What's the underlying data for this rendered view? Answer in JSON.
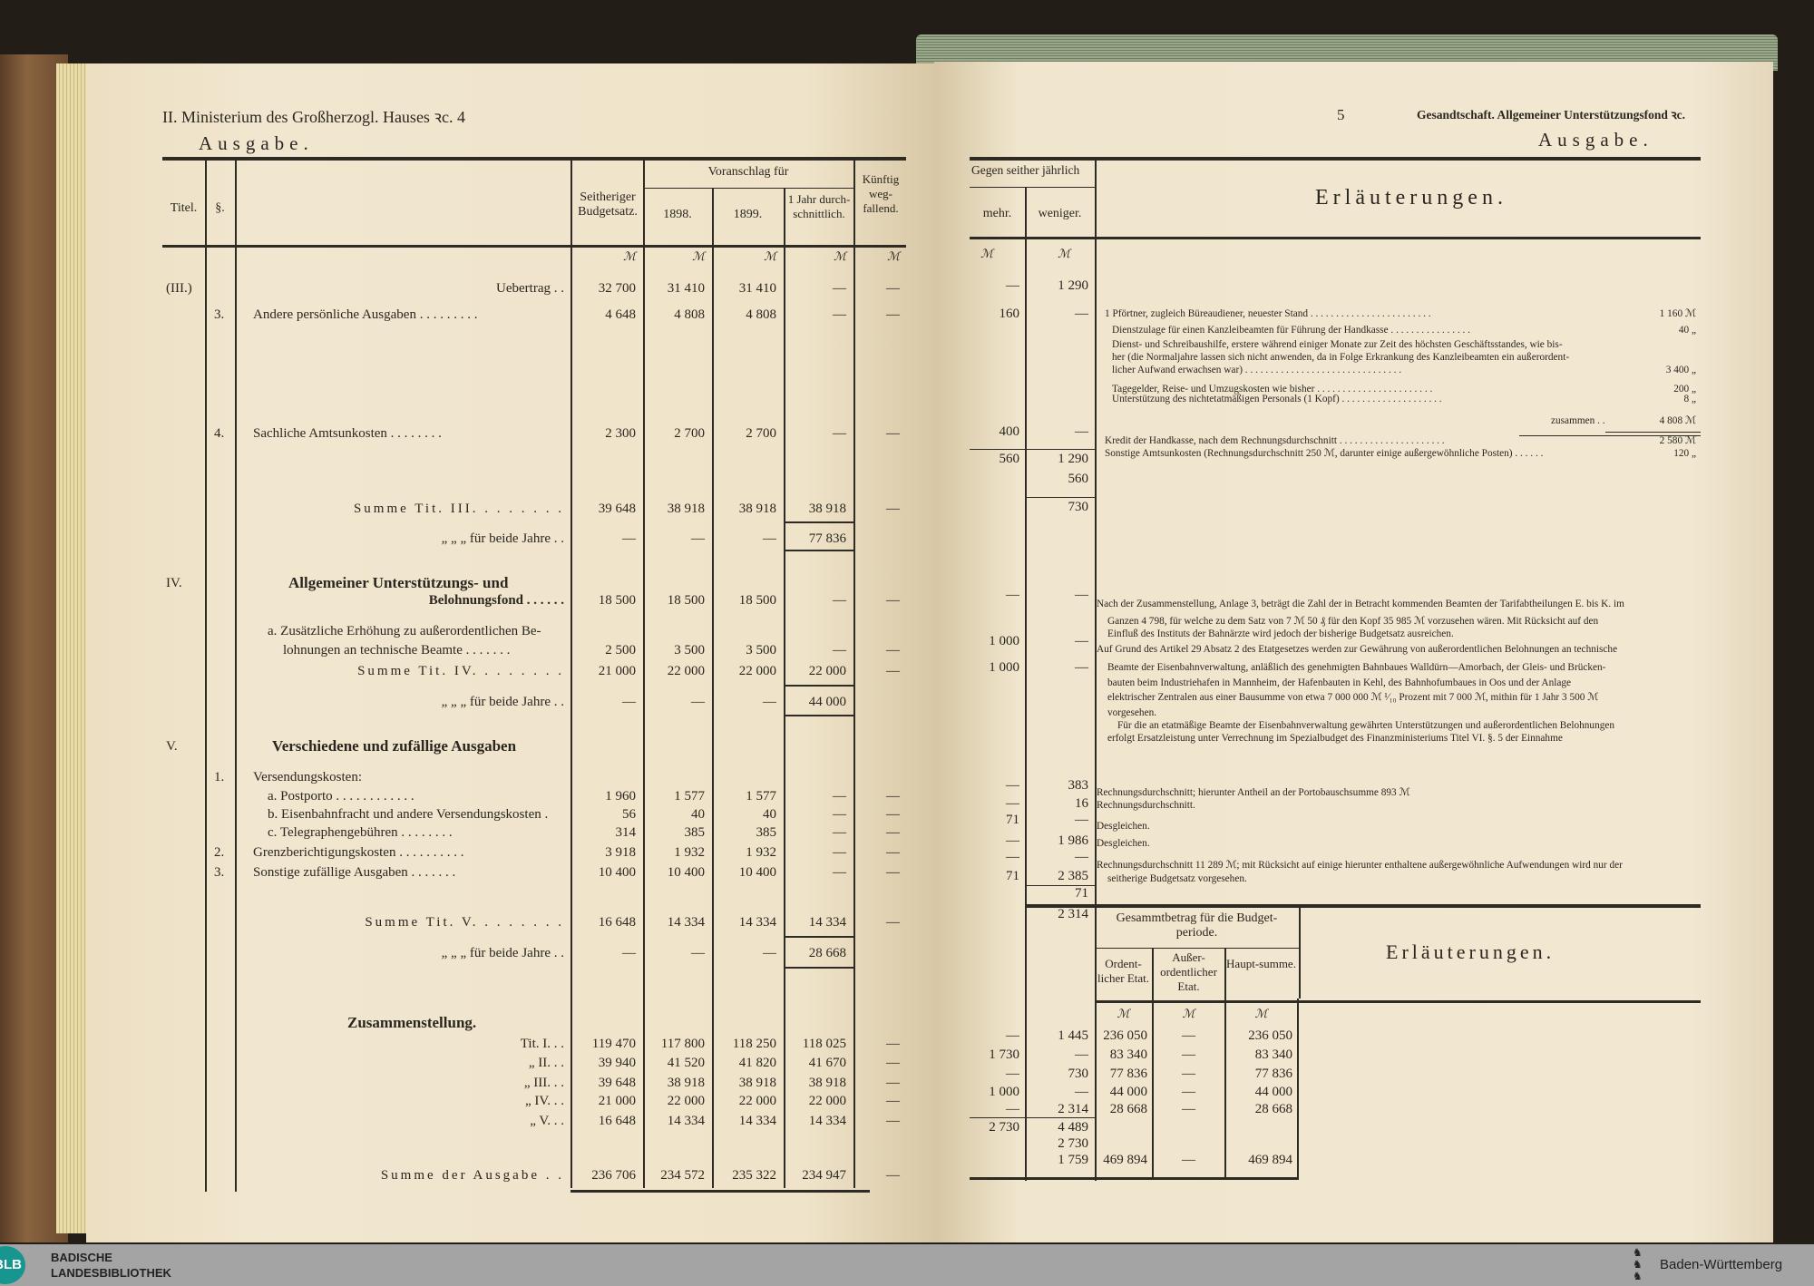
{
  "left": {
    "heading": "II. Ministerium des Großherzogl. Hauses ꝛc. 4",
    "subheading": "Ausgabe.",
    "columns": {
      "titel": "Titel.",
      "para": "§.",
      "seitheriger": "Seitheriger Budgetsatz.",
      "voranschlag": "Voranschlag für",
      "y1898": "1898.",
      "y1899": "1899.",
      "jahr": "1 Jahr durch-schnittlich.",
      "kuenftig": "Künftig weg-fallend."
    },
    "currency": "ℳ",
    "rows": [
      {
        "titel": "(III.)",
        "para": "",
        "label": "Uebertrag . .",
        "vals": [
          "32 700",
          "31 410",
          "31 410",
          "—",
          "—"
        ]
      },
      {
        "titel": "",
        "para": "3.",
        "label": "Andere persönliche Ausgaben . . . . . . . . .",
        "vals": [
          "4 648",
          "4 808",
          "4 808",
          "—",
          "—"
        ]
      },
      {
        "titel": "",
        "para": "4.",
        "label": "Sachliche Amtsunkosten . . . . . . . .",
        "vals": [
          "2 300",
          "2 700",
          "2 700",
          "—",
          "—"
        ]
      },
      {
        "titel": "",
        "para": "",
        "label": "Summe Tit. III. . . . . . . .",
        "vals": [
          "39 648",
          "38 918",
          "38 918",
          "38 918",
          "—"
        ]
      },
      {
        "titel": "",
        "para": "",
        "label": "„ „ „ für beide Jahre . .",
        "vals": [
          "—",
          "—",
          "—",
          "77 836",
          ""
        ]
      },
      {
        "titel": "IV.",
        "para": "",
        "label": "Allgemeiner Unterstützungs- und",
        "vals": [
          "",
          "",
          "",
          "",
          ""
        ]
      },
      {
        "titel": "",
        "para": "",
        "label": "Belohnungsfond . . . . . .",
        "vals": [
          "18 500",
          "18 500",
          "18 500",
          "—",
          "—"
        ]
      },
      {
        "titel": "",
        "para": "",
        "label": "a. Zusätzliche Erhöhung zu außerordentlichen Be-",
        "vals": [
          "",
          "",
          "",
          "",
          ""
        ]
      },
      {
        "titel": "",
        "para": "",
        "label": "lohnungen an technische Beamte . . . . . . .",
        "vals": [
          "2 500",
          "3 500",
          "3 500",
          "—",
          "—"
        ]
      },
      {
        "titel": "",
        "para": "",
        "label": "Summe Tit. IV. . . . . . . .",
        "vals": [
          "21 000",
          "22 000",
          "22 000",
          "22 000",
          "—"
        ]
      },
      {
        "titel": "",
        "para": "",
        "label": "„ „ „ für beide Jahre . .",
        "vals": [
          "—",
          "—",
          "—",
          "44 000",
          ""
        ]
      },
      {
        "titel": "V.",
        "para": "",
        "label": "Verschiedene und zufällige Ausgaben",
        "vals": [
          "",
          "",
          "",
          "",
          ""
        ]
      },
      {
        "titel": "",
        "para": "1.",
        "label": "Versendungskosten:",
        "vals": [
          "",
          "",
          "",
          "",
          ""
        ]
      },
      {
        "titel": "",
        "para": "",
        "label": "a. Postporto . . . . . . . . . . . .",
        "vals": [
          "1 960",
          "1 577",
          "1 577",
          "—",
          "—"
        ]
      },
      {
        "titel": "",
        "para": "",
        "label": "b. Eisenbahnfracht und andere Versendungskosten .",
        "vals": [
          "56",
          "40",
          "40",
          "—",
          "—"
        ]
      },
      {
        "titel": "",
        "para": "",
        "label": "c. Telegraphengebühren . . . . . . . .",
        "vals": [
          "314",
          "385",
          "385",
          "—",
          "—"
        ]
      },
      {
        "titel": "",
        "para": "2.",
        "label": "Grenzberichtigungskosten . . . . . . . . . .",
        "vals": [
          "3 918",
          "1 932",
          "1 932",
          "—",
          "—"
        ]
      },
      {
        "titel": "",
        "para": "3.",
        "label": "Sonstige zufällige Ausgaben . . . . . . .",
        "vals": [
          "10 400",
          "10 400",
          "10 400",
          "—",
          "—"
        ]
      },
      {
        "titel": "",
        "para": "",
        "label": "Summe Tit. V. . . . . . . .",
        "vals": [
          "16 648",
          "14 334",
          "14 334",
          "14 334",
          "—"
        ]
      },
      {
        "titel": "",
        "para": "",
        "label": "„ „ „ für beide Jahre . .",
        "vals": [
          "—",
          "—",
          "—",
          "28 668",
          ""
        ]
      },
      {
        "titel": "",
        "para": "",
        "label": "Zusammenstellung.",
        "vals": [
          "",
          "",
          "",
          "",
          ""
        ]
      },
      {
        "titel": "",
        "para": "",
        "label": "Tit. I. . .",
        "vals": [
          "119 470",
          "117 800",
          "118 250",
          "118 025",
          "—"
        ]
      },
      {
        "titel": "",
        "para": "",
        "label": "„ II. . .",
        "vals": [
          "39 940",
          "41 520",
          "41 820",
          "41 670",
          "—"
        ]
      },
      {
        "titel": "",
        "para": "",
        "label": "„ III. . .",
        "vals": [
          "39 648",
          "38 918",
          "38 918",
          "38 918",
          "—"
        ]
      },
      {
        "titel": "",
        "para": "",
        "label": "„ IV. . .",
        "vals": [
          "21 000",
          "22 000",
          "22 000",
          "22 000",
          "—"
        ]
      },
      {
        "titel": "",
        "para": "",
        "label": "„ V. . .",
        "vals": [
          "16 648",
          "14 334",
          "14 334",
          "14 334",
          "—"
        ]
      },
      {
        "titel": "",
        "para": "",
        "label": "Summe der Ausgabe . .",
        "vals": [
          "236 706",
          "234 572",
          "235 322",
          "234 947",
          "—"
        ]
      }
    ]
  },
  "right": {
    "page_number": "5",
    "heading": "Gesandtschaft. Allgemeiner Unterstützungsfond ꝛc.",
    "subheading": "Ausgabe.",
    "columns": {
      "gegen": "Gegen seither jährlich",
      "mehr": "mehr.",
      "weniger": "weniger.",
      "erlaeuterungen": "Erläuterungen."
    },
    "currency": "ℳ",
    "rows": [
      {
        "mehr": "—",
        "weniger": "1 290"
      },
      {
        "mehr": "160",
        "weniger": "—"
      },
      {
        "mehr": "400",
        "weniger": "—"
      },
      {
        "mehr": "560",
        "weniger": "1 290"
      },
      {
        "mehr": "",
        "weniger": "560"
      },
      {
        "mehr": "",
        "weniger": "730"
      },
      {
        "mehr": "—",
        "weniger": "—"
      },
      {
        "mehr": "1 000",
        "weniger": "—"
      },
      {
        "mehr": "1 000",
        "weniger": "—"
      },
      {
        "mehr": "—",
        "weniger": "383"
      },
      {
        "mehr": "—",
        "weniger": "16"
      },
      {
        "mehr": "71",
        "weniger": "—"
      },
      {
        "mehr": "—",
        "weniger": "1 986"
      },
      {
        "mehr": "—",
        "weniger": "—"
      },
      {
        "mehr": "71",
        "weniger": "2 385"
      },
      {
        "mehr": "",
        "weniger": "71"
      },
      {
        "mehr": "",
        "weniger": "2 314"
      },
      {
        "mehr": "—",
        "weniger": "1 445"
      },
      {
        "mehr": "1 730",
        "weniger": "—"
      },
      {
        "mehr": "—",
        "weniger": "730"
      },
      {
        "mehr": "1 000",
        "weniger": "—"
      },
      {
        "mehr": "—",
        "weniger": "2 314"
      },
      {
        "mehr": "2 730",
        "weniger": "4 489"
      },
      {
        "mehr": "",
        "weniger": "2 730"
      },
      {
        "mehr": "",
        "weniger": "1 759"
      }
    ],
    "notes": [
      {
        "text": "1 Pförtner, zugleich Büreaudiener, neuester Stand . . . . . . . . . . . . . . . . . . . . . . . .",
        "amount": "1 160 ℳ"
      },
      {
        "text": "Dienstzulage für einen Kanzleibeamten für Führung der Handkasse . . . . . . . . . . . . . . . .",
        "amount": "40 „"
      },
      {
        "text": "Dienst- und Schreibaushilfe, erstere während einiger Monate zur Zeit des höchsten Geschäftsstandes, wie bis-",
        "amount": ""
      },
      {
        "text": "her (die Normaljahre lassen sich nicht anwenden, da in Folge Erkrankung des Kanzleibeamten ein außerordent-",
        "amount": ""
      },
      {
        "text": "licher Aufwand erwachsen war) . . . . . . . . . . . . . . . . . . . . . . . . . . . . . . .",
        "amount": "3 400 „"
      },
      {
        "text": "Tagegelder, Reise- und Umzugskosten wie bisher . . . . . . . . . . . . . . . . . . . . . . .",
        "amount": "200 „"
      },
      {
        "text": "Unterstützung des nichtetatmäßigen Personals (1 Kopf) . . . . . . . . . . . . . . . . . . . .",
        "amount": "8 „"
      },
      {
        "text": "zusammen . .",
        "amount": "4 808 ℳ"
      },
      {
        "text": "Kredit der Handkasse, nach dem Rechnungsdurchschnitt . . . . . . . . . . . . . . . . . . . . .",
        "amount": "2 580 ℳ"
      },
      {
        "text": "Sonstige Amtsunkosten (Rechnungsdurchschnitt 250 ℳ, darunter einige außergewöhnliche Posten) . . . . . .",
        "amount": "120 „"
      },
      {
        "text": "Nach der Zusammenstellung, Anlage 3, beträgt die Zahl der in Betracht kommenden Beamten der Tarifabtheilungen E. bis K. im",
        "amount": ""
      },
      {
        "text": "Ganzen 4 798, für welche zu dem Satz von 7 ℳ 50 ₰ für den Kopf 35 985 ℳ vorzusehen wären. Mit Rücksicht auf den",
        "amount": ""
      },
      {
        "text": "Einfluß des Instituts der Bahnärzte wird jedoch der bisherige Budgetsatz ausreichen.",
        "amount": ""
      },
      {
        "text": "Auf Grund des Artikel 29 Absatz 2 des Etatgesetzes werden zur Gewährung von außerordentlichen Belohnungen an technische",
        "amount": ""
      },
      {
        "text": "Beamte der Eisenbahnverwaltung, anläßlich des genehmigten Bahnbaues Walldürn—Amorbach, der Gleis- und Brücken-",
        "amount": ""
      },
      {
        "text": "bauten beim Industriehafen in Mannheim, der Hafenbauten in Kehl, des Bahnhofumbaues in Oos und der Anlage",
        "amount": ""
      },
      {
        "text": "elektrischer Zentralen aus einer Bausumme von etwa 7 000 000 ℳ ¹⁄₁₀ Prozent mit 7 000 ℳ, mithin für 1 Jahr 3 500 ℳ",
        "amount": ""
      },
      {
        "text": "vorgesehen.",
        "amount": ""
      },
      {
        "text": "Für die an etatmäßige Beamte der Eisenbahnverwaltung gewährten Unterstützungen und außerordentlichen Belohnungen",
        "amount": ""
      },
      {
        "text": "erfolgt Ersatzleistung unter Verrechnung im Spezialbudget des Finanzministeriums Titel VI. §. 5 der Einnahme",
        "amount": ""
      },
      {
        "text": "Rechnungsdurchschnitt; hierunter Antheil an der Portobauschsumme 893 ℳ",
        "amount": ""
      },
      {
        "text": "Rechnungsdurchschnitt.",
        "amount": ""
      },
      {
        "text": "Desgleichen.",
        "amount": ""
      },
      {
        "text": "Desgleichen.",
        "amount": ""
      },
      {
        "text": "Rechnungsdurchschnitt 11 289 ℳ; mit Rücksicht auf einige hierunter enthaltene außergewöhnliche Aufwendungen wird nur der",
        "amount": ""
      },
      {
        "text": "seitherige Budgetsatz vorgesehen.",
        "amount": ""
      }
    ],
    "summary": {
      "title": "Gesammtbetrag für die Budget-periode.",
      "columns": {
        "ordentlich": "Ordent-licher Etat.",
        "ausser": "Außer-ordentlicher Etat.",
        "haupt": "Haupt-summe."
      },
      "erlaeuterungen": "Erläuterungen.",
      "rows": [
        {
          "ord": "236 050",
          "ausser": "—",
          "haupt": "236 050"
        },
        {
          "ord": "83 340",
          "ausser": "—",
          "haupt": "83 340"
        },
        {
          "ord": "77 836",
          "ausser": "—",
          "haupt": "77 836"
        },
        {
          "ord": "44 000",
          "ausser": "—",
          "haupt": "44 000"
        },
        {
          "ord": "28 668",
          "ausser": "—",
          "haupt": "28 668"
        },
        {
          "ord": "469 894",
          "ausser": "—",
          "haupt": "469 894"
        }
      ]
    }
  },
  "footer": {
    "logo": "BLB",
    "library_line1": "BADISCHE",
    "library_line2": "LANDESBIBLIOTHEK",
    "state": "Baden-Württemberg",
    "colors": {
      "logo": "#17958f",
      "bar": "#a4a4a4"
    }
  }
}
